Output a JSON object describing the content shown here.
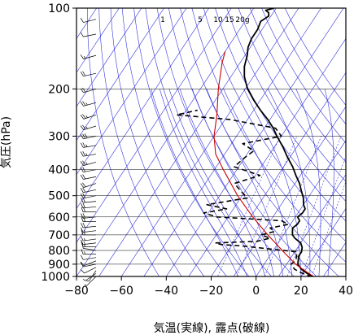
{
  "chart_data": {
    "type": "line",
    "xlabel": "気温(実線), 露点(破線)",
    "ylabel": "気圧(hPa)",
    "xlim": [
      -80,
      40
    ],
    "ylim": [
      1000,
      100
    ],
    "y_scale": "log",
    "x_ticks": [
      -80,
      -60,
      -40,
      -20,
      0,
      20,
      40
    ],
    "y_ticks": [
      100,
      200,
      300,
      400,
      500,
      600,
      700,
      800,
      900,
      1000
    ],
    "mixing_ratio_labels": [
      "1",
      "5",
      "10",
      "15",
      "20g"
    ],
    "colors": {
      "isotherm": "#3333dd",
      "curve": "#cc0000",
      "frame": "#000000",
      "profile": "#000000"
    },
    "grid": true,
    "series": [
      {
        "values": [
          [
            26,
            1005
          ],
          [
            22,
            975
          ],
          [
            18,
            940
          ],
          [
            15,
            900
          ],
          [
            14,
            870
          ],
          [
            13,
            840
          ],
          [
            13,
            810
          ],
          [
            12,
            780
          ],
          [
            10,
            750
          ],
          [
            6,
            720
          ],
          [
            4,
            700
          ],
          [
            3,
            680
          ],
          [
            2,
            660
          ],
          [
            3,
            640
          ],
          [
            3,
            620
          ],
          [
            1,
            600
          ],
          [
            2,
            580
          ],
          [
            2,
            560
          ],
          [
            0,
            540
          ],
          [
            -2,
            510
          ],
          [
            -5,
            480
          ],
          [
            -8,
            450
          ],
          [
            -12,
            420
          ],
          [
            -16,
            390
          ],
          [
            -21,
            360
          ],
          [
            -26,
            330
          ],
          [
            -32,
            300
          ],
          [
            -36,
            280
          ],
          [
            -41,
            260
          ],
          [
            -47,
            240
          ],
          [
            -53,
            220
          ],
          [
            -59,
            200
          ],
          [
            -64,
            180
          ],
          [
            -67,
            165
          ],
          [
            -69,
            150
          ],
          [
            -71,
            140
          ],
          [
            -72,
            130
          ],
          [
            -72,
            120
          ],
          [
            -73,
            112
          ],
          [
            -71,
            107
          ],
          [
            -72,
            104
          ],
          [
            -74,
            102
          ],
          [
            -71,
            100
          ]
        ]
      },
      {
        "values": [
          [
            25,
            1005
          ],
          [
            20,
            975
          ],
          [
            15,
            940
          ],
          [
            12,
            900
          ],
          [
            13,
            870
          ],
          [
            12,
            840
          ],
          [
            11,
            810
          ],
          [
            -2,
            790
          ],
          [
            -15,
            770
          ],
          [
            -25,
            760
          ],
          [
            -28,
            750
          ],
          [
            -10,
            740
          ],
          [
            -5,
            720
          ],
          [
            -10,
            700
          ],
          [
            -5,
            680
          ],
          [
            -8,
            660
          ],
          [
            -1,
            640
          ],
          [
            -5,
            620
          ],
          [
            -35,
            600
          ],
          [
            -42,
            580
          ],
          [
            -33,
            560
          ],
          [
            -43,
            540
          ],
          [
            -27,
            510
          ],
          [
            -32,
            480
          ],
          [
            -37,
            450
          ],
          [
            -28,
            420
          ],
          [
            -42,
            390
          ],
          [
            -40,
            360
          ],
          [
            -38,
            340
          ],
          [
            -45,
            320
          ],
          [
            -30,
            300
          ],
          [
            -35,
            280
          ],
          [
            -58,
            260
          ],
          [
            -83,
            250
          ],
          [
            -75,
            240
          ]
        ]
      },
      {
        "values": [
          [
            26,
            1005
          ],
          [
            14,
            900
          ],
          [
            4,
            800
          ],
          [
            -7,
            700
          ],
          [
            -19,
            600
          ],
          [
            -32,
            500
          ],
          [
            -46,
            400
          ],
          [
            -54,
            350
          ],
          [
            -60,
            300
          ],
          [
            -65,
            250
          ],
          [
            -72,
            200
          ],
          [
            -78,
            160
          ],
          [
            -80,
            145
          ]
        ]
      }
    ],
    "isotherm_temps": [
      -160,
      -150,
      -140,
      -130,
      -120,
      -110,
      -100,
      -90,
      -80,
      -70,
      -60,
      -50,
      -40,
      -30,
      -20,
      -10,
      0,
      10,
      20,
      30,
      40
    ],
    "dry_adiabat_thetas": [
      230,
      240,
      250,
      260,
      270,
      280,
      290,
      300,
      310,
      320,
      330,
      340,
      350,
      360,
      370,
      380,
      390,
      400
    ],
    "moist_adiabat_starts": [
      -8,
      -4,
      0,
      4,
      8,
      12,
      16,
      20,
      24,
      28,
      32
    ],
    "mixing_ratios": [
      1,
      2,
      5,
      10,
      15,
      20
    ],
    "barbs": [
      {
        "p": 1000,
        "u": 5,
        "v": 5
      },
      {
        "p": 975,
        "u": 6,
        "v": 4
      },
      {
        "p": 950,
        "u": 4,
        "v": 6
      },
      {
        "p": 925,
        "u": 8,
        "v": 4
      },
      {
        "p": 900,
        "u": 10,
        "v": 2
      },
      {
        "p": 875,
        "u": 10,
        "v": 4
      },
      {
        "p": 850,
        "u": 12,
        "v": 2
      },
      {
        "p": 825,
        "u": 14,
        "v": 0
      },
      {
        "p": 800,
        "u": 12,
        "v": -2
      },
      {
        "p": 775,
        "u": 14,
        "v": 0
      },
      {
        "p": 750,
        "u": 16,
        "v": 2
      },
      {
        "p": 725,
        "u": 14,
        "v": 2
      },
      {
        "p": 700,
        "u": 16,
        "v": 0
      },
      {
        "p": 675,
        "u": 16,
        "v": 2
      },
      {
        "p": 650,
        "u": 18,
        "v": 2
      },
      {
        "p": 625,
        "u": 18,
        "v": 0
      },
      {
        "p": 600,
        "u": 20,
        "v": 2
      },
      {
        "p": 575,
        "u": 20,
        "v": 0
      },
      {
        "p": 550,
        "u": 20,
        "v": 2
      },
      {
        "p": 525,
        "u": 22,
        "v": 2
      },
      {
        "p": 500,
        "u": 20,
        "v": 4
      },
      {
        "p": 475,
        "u": 18,
        "v": 4
      },
      {
        "p": 450,
        "u": 18,
        "v": 6
      },
      {
        "p": 425,
        "u": 20,
        "v": 4
      },
      {
        "p": 400,
        "u": 22,
        "v": 4
      },
      {
        "p": 375,
        "u": 22,
        "v": 6
      },
      {
        "p": 350,
        "u": 24,
        "v": 4
      },
      {
        "p": 325,
        "u": 26,
        "v": 4
      },
      {
        "p": 300,
        "u": 28,
        "v": 6
      },
      {
        "p": 275,
        "u": 26,
        "v": 8
      },
      {
        "p": 250,
        "u": 24,
        "v": 8
      },
      {
        "p": 225,
        "u": 22,
        "v": 6
      },
      {
        "p": 200,
        "u": 20,
        "v": 6
      },
      {
        "p": 175,
        "u": 18,
        "v": 4
      },
      {
        "p": 150,
        "u": 14,
        "v": 4
      },
      {
        "p": 125,
        "u": 10,
        "v": 2
      },
      {
        "p": 110,
        "u": 8,
        "v": 2
      }
    ]
  }
}
